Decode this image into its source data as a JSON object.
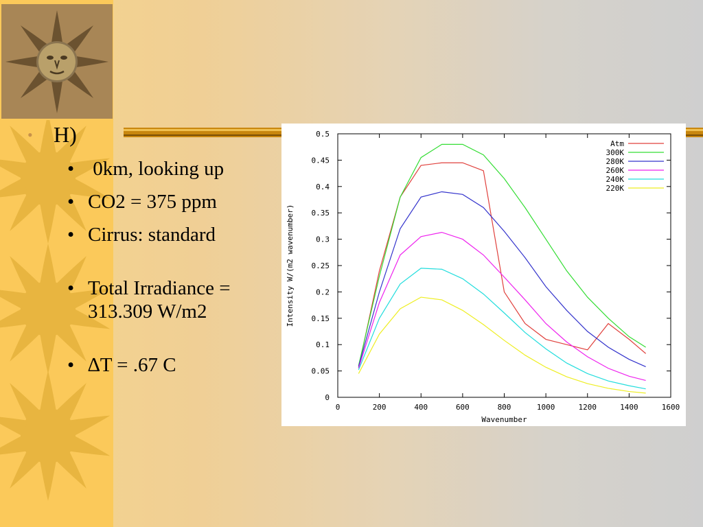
{
  "slide": {
    "heading": "H)",
    "bullets": [
      " 0km, looking up",
      "CO2 = 375 ppm",
      "Cirrus: standard",
      "Total Irradiance = 313.309 W/m2",
      "∆T = .67 C"
    ],
    "bullet_char": "•"
  },
  "colors": {
    "strip": "#fbc95a",
    "sun": "#e8b540",
    "rule": "#c8860e",
    "atm": "#e0403c",
    "k300": "#33dd33",
    "k280": "#3333cc",
    "k260": "#ee22ee",
    "k240": "#22dddd",
    "k220": "#eeee22"
  },
  "icons": [
    "sun-face-logo-icon",
    "sun-decoration-icon"
  ],
  "chart_data": {
    "type": "line",
    "title": "",
    "xlabel": "Wavenumber",
    "ylabel": "Intensity W/(m2 wavenumber)",
    "xlim": [
      0,
      1600
    ],
    "ylim": [
      0,
      0.5
    ],
    "xticks": [
      "0",
      "200",
      "400",
      "600",
      "800",
      "1000",
      "1200",
      "1400",
      "1600"
    ],
    "yticks": [
      "0",
      "0.05",
      "0.1",
      "0.15",
      "0.2",
      "0.25",
      "0.3",
      "0.35",
      "0.4",
      "0.45",
      "0.5"
    ],
    "legend_position": "top-right",
    "x": [
      100,
      200,
      300,
      400,
      500,
      600,
      700,
      800,
      900,
      1000,
      1100,
      1200,
      1300,
      1400,
      1480
    ],
    "series": [
      {
        "name": "Atm",
        "color": "#e0403c",
        "values": [
          0.056,
          0.24,
          0.38,
          0.44,
          0.445,
          0.445,
          0.43,
          0.2,
          0.14,
          0.11,
          0.1,
          0.09,
          0.14,
          0.11,
          0.083
        ]
      },
      {
        "name": "300K",
        "color": "#33dd33",
        "values": [
          0.06,
          0.23,
          0.38,
          0.455,
          0.48,
          0.48,
          0.46,
          0.415,
          0.36,
          0.3,
          0.24,
          0.19,
          0.15,
          0.115,
          0.095
        ]
      },
      {
        "name": "280K",
        "color": "#3333cc",
        "values": [
          0.058,
          0.2,
          0.32,
          0.38,
          0.39,
          0.385,
          0.36,
          0.315,
          0.265,
          0.21,
          0.165,
          0.125,
          0.095,
          0.072,
          0.058
        ]
      },
      {
        "name": "260K",
        "color": "#ee22ee",
        "values": [
          0.055,
          0.18,
          0.27,
          0.305,
          0.313,
          0.3,
          0.27,
          0.228,
          0.185,
          0.14,
          0.105,
          0.077,
          0.055,
          0.04,
          0.032
        ]
      },
      {
        "name": "240K",
        "color": "#22dddd",
        "values": [
          0.052,
          0.15,
          0.215,
          0.245,
          0.243,
          0.225,
          0.196,
          0.16,
          0.123,
          0.092,
          0.065,
          0.045,
          0.031,
          0.022,
          0.016
        ]
      },
      {
        "name": "220K",
        "color": "#eeee22",
        "values": [
          0.045,
          0.12,
          0.168,
          0.19,
          0.185,
          0.165,
          0.138,
          0.108,
          0.08,
          0.057,
          0.039,
          0.026,
          0.017,
          0.011,
          0.008
        ]
      }
    ]
  }
}
